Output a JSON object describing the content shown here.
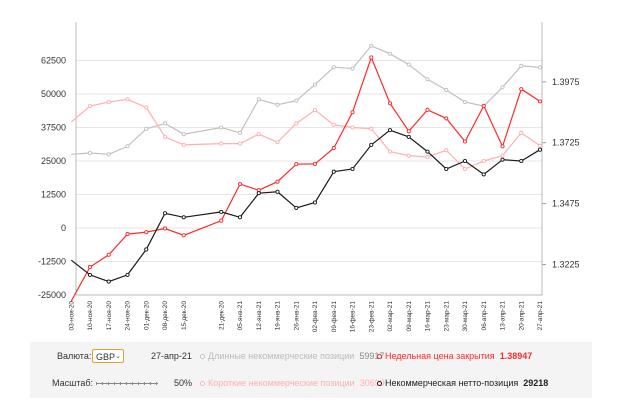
{
  "chart_data": {
    "type": "line",
    "title": "",
    "x_labels": [
      "10-ноя-20",
      "17-ноя-20",
      "24-ноя-20",
      "01-дек-20",
      "08-дек-20",
      "15-дек-20",
      "21-дек-20",
      "05-янв-21",
      "12-янв-21",
      "19-янв-21",
      "26-янв-21",
      "02-фев-21",
      "09-фев-21",
      "16-фев-21",
      "23-фев-21",
      "02-мар-21",
      "09-мар-21",
      "16-мар-21",
      "23-мар-21",
      "30-мар-21",
      "06-апр-21",
      "13-апр-21",
      "20-апр-21",
      "27-апр-21"
    ],
    "x_labels_extra_left": [
      "03-ноя-20"
    ],
    "y_left": {
      "ticks": [
        "62500",
        "50000",
        "37500",
        "25000",
        "12500",
        "0",
        "-12500",
        "-25000"
      ],
      "min": -25000,
      "max": 75000
    },
    "y_right": {
      "ticks": [
        "1.3975",
        "1.3725",
        "1.3475",
        "1.3225"
      ],
      "min": 1.31,
      "max": 1.42
    },
    "series": [
      {
        "name": "Длинные некоммерческие позиции",
        "color": "#c0c0c0",
        "axis": "left",
        "values": [
          27500,
          28000,
          27500,
          30500,
          37000,
          39000,
          35000,
          37500,
          35500,
          48000,
          46000,
          47500,
          53500,
          60000,
          59500,
          68000,
          65000,
          61000,
          55500,
          51500,
          47000,
          45500,
          52500,
          60500,
          59917
        ]
      },
      {
        "name": "Короткие некоммерческие позиции",
        "color": "#ffb0b0",
        "axis": "left",
        "values": [
          39500,
          45500,
          47000,
          48000,
          45000,
          34000,
          31000,
          31500,
          31500,
          35000,
          32000,
          39000,
          44000,
          38500,
          37500,
          37000,
          28500,
          27000,
          26500,
          29000,
          22000,
          25000,
          27000,
          35500,
          30699
        ]
      },
      {
        "name": "Недельная цена закрытия",
        "color": "#ff2a2a",
        "axis": "right",
        "values": [
          1.3075,
          1.3215,
          1.3265,
          1.335,
          1.3358,
          1.3373,
          1.3345,
          1.3405,
          1.3555,
          1.353,
          1.3565,
          1.3637,
          1.3638,
          1.3703,
          1.385,
          1.4075,
          1.3887,
          1.3772,
          1.386,
          1.3825,
          1.373,
          1.3876,
          1.371,
          1.3945,
          1.38947
        ]
      },
      {
        "name": "Некоммерческая нетто-позиция",
        "color": "#1a1a1a",
        "axis": "left",
        "values": [
          -12000,
          -17500,
          -20000,
          -17500,
          -8000,
          5500,
          4000,
          6000,
          4000,
          13000,
          13500,
          7500,
          9500,
          21000,
          22000,
          31000,
          36500,
          34000,
          28500,
          22000,
          25000,
          20000,
          25500,
          25000,
          29218
        ]
      }
    ]
  },
  "controls": {
    "currency_label": "Валюта:",
    "currency_value": "GBP",
    "date": "27-апр-21",
    "scale_label": "Масштаб:",
    "scale_value": "50%",
    "legend": {
      "long_label": "Длинные некоммерческие позиции",
      "long_value": "59917",
      "short_label": "Короткие некоммерческие позиции",
      "short_value": "30699",
      "close_label": "Недельная цена закрытия",
      "close_value": "1.38947",
      "net_label": "Некоммерческая нетто-позиция",
      "net_value": "29218"
    }
  },
  "colors": {
    "long": "#c0c0c0",
    "short": "#ffb0b0",
    "close": "#ff2a2a",
    "net": "#1a1a1a",
    "grid": "#e6e6e6"
  }
}
